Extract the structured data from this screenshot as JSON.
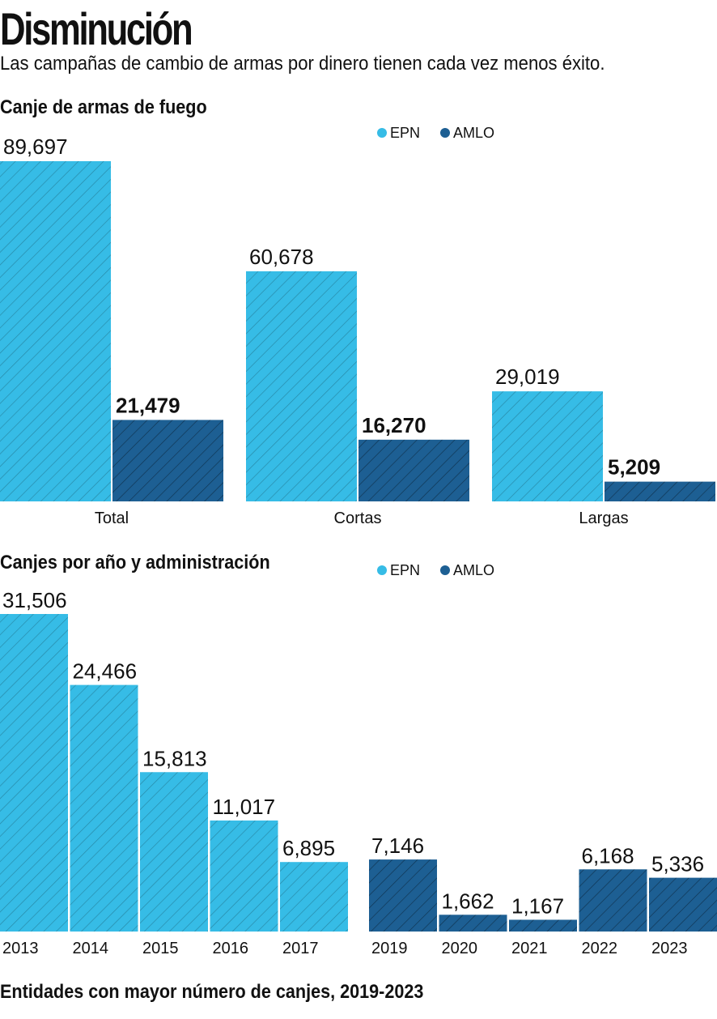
{
  "header": {
    "title": "Disminución",
    "subtitle": "Las campañas de cambio de armas por dinero tienen cada vez menos éxito."
  },
  "colors": {
    "epn": "#36bce6",
    "amlo": "#1d5f93",
    "baseline": "#333333",
    "background": "#ffffff"
  },
  "chart_data": [
    {
      "type": "bar",
      "title": "Canje de armas de fuego",
      "legend": [
        "EPN",
        "AMLO"
      ],
      "categories": [
        "Total",
        "Cortas",
        "Largas"
      ],
      "series": [
        {
          "name": "EPN",
          "values": [
            89697,
            60678,
            29019
          ],
          "labels": [
            "89,697",
            "60,678",
            "29,019"
          ]
        },
        {
          "name": "AMLO",
          "values": [
            21479,
            16270,
            5209
          ],
          "labels": [
            "21,479",
            "16,270",
            "5,209"
          ]
        }
      ],
      "ylim": [
        0,
        89697
      ]
    },
    {
      "type": "bar",
      "title": "Canjes por año y administración",
      "legend": [
        "EPN",
        "AMLO"
      ],
      "groups": [
        {
          "name": "EPN",
          "categories": [
            "2013",
            "2014",
            "2015",
            "2016",
            "2017"
          ],
          "values": [
            31506,
            24466,
            15813,
            11017,
            6895
          ],
          "labels": [
            "31,506",
            "24,466",
            "15,813",
            "11,017",
            "6,895"
          ]
        },
        {
          "name": "AMLO",
          "categories": [
            "2019",
            "2020",
            "2021",
            "2022",
            "2023"
          ],
          "values": [
            7146,
            1662,
            1167,
            6168,
            5336
          ],
          "labels": [
            "7,146",
            "1,662",
            "1,167",
            "6,168",
            "5,336"
          ]
        }
      ],
      "ylim": [
        0,
        31506
      ]
    }
  ],
  "footer": {
    "next_section_title": "Entidades con mayor número de canjes, 2019-2023"
  }
}
